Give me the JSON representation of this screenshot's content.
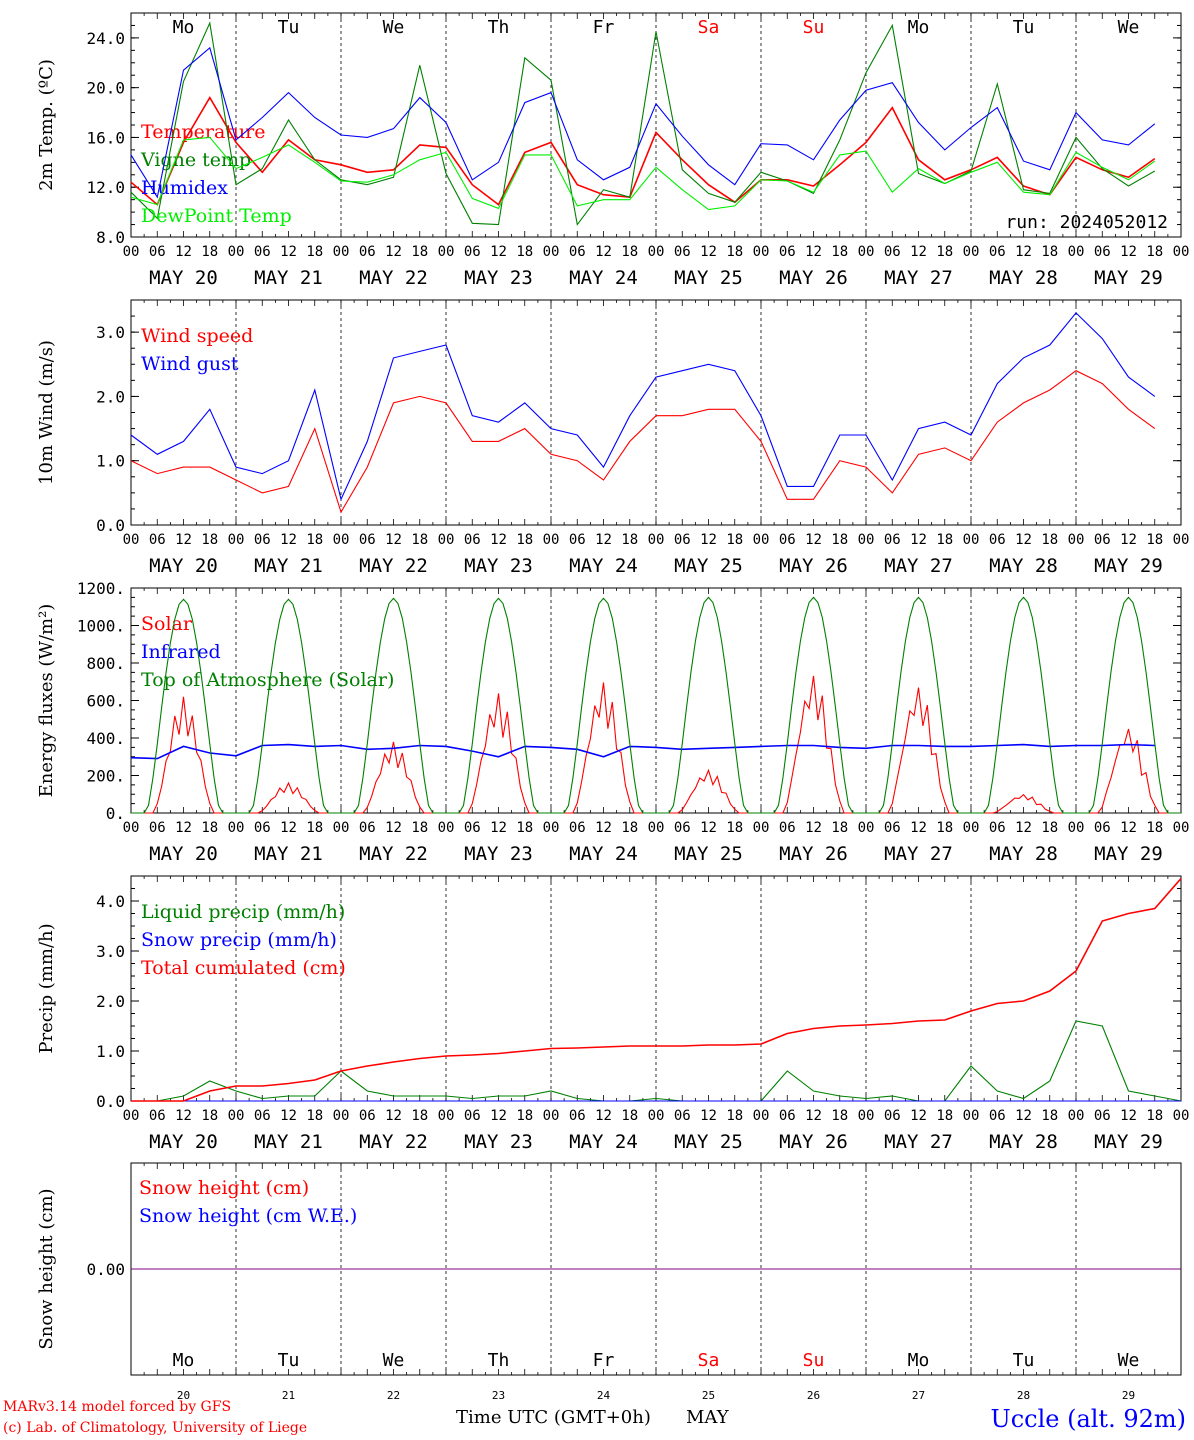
{
  "colors": {
    "red": "#ff0000",
    "green": "#008000",
    "blue": "#0000ff",
    "light_green": "#00ee00",
    "purple": "#800080"
  },
  "time_axis": {
    "hour_labels": [
      "00",
      "06",
      "12",
      "18"
    ],
    "end_label": "00",
    "date_labels": [
      "MAY 20",
      "MAY 21",
      "MAY 22",
      "MAY 23",
      "MAY 24",
      "MAY 25",
      "MAY 26",
      "MAY 27",
      "MAY 28",
      "MAY 29"
    ],
    "weekdays": [
      "Mo",
      "Tu",
      "We",
      "Th",
      "Fr",
      "Sa",
      "Su",
      "Mo",
      "Tu",
      "We"
    ],
    "weekday_colors": [
      "#000000",
      "#000000",
      "#000000",
      "#000000",
      "#000000",
      "#ff0000",
      "#ff0000",
      "#000000",
      "#000000",
      "#000000"
    ],
    "day_numbers": [
      "20",
      "21",
      "22",
      "23",
      "24",
      "25",
      "26",
      "27",
      "28",
      "29"
    ],
    "xlabel": "Time UTC (GMT+0h)",
    "month": "MAY"
  },
  "footer": {
    "credit_line1": "MARv3.14 model forced by GFS",
    "credit_line2": "(c) Lab. of Climatology, University of Liege",
    "location": "Uccle (alt. 92m)"
  },
  "chart_data": [
    {
      "type": "line",
      "ylabel": "2m Temp. (ºC)",
      "ylim": [
        8,
        26
      ],
      "yticks": [
        "8.0",
        "12.0",
        "16.0",
        "20.0",
        "24.0"
      ],
      "run_label": "run: 2024052012",
      "x_hours": [
        0,
        6,
        12,
        18,
        24,
        30,
        36,
        42,
        48,
        54,
        60,
        66,
        72,
        78,
        84,
        90,
        96,
        102,
        108,
        114,
        120,
        126,
        132,
        138,
        144,
        150,
        156,
        162,
        168,
        174,
        180,
        186,
        192,
        198,
        204,
        210,
        216,
        222,
        228,
        234
      ],
      "series": [
        {
          "name": "Temperature",
          "color": "#ff0000",
          "values": [
            12.4,
            10.6,
            15.6,
            19.2,
            15.6,
            13.2,
            15.8,
            14.2,
            13.8,
            13.2,
            13.4,
            15.4,
            15.2,
            12.2,
            10.6,
            14.8,
            15.6,
            12.2,
            11.4,
            11.2,
            16.4,
            14.2,
            12.2,
            10.8,
            12.6,
            12.6,
            12.1,
            13.8,
            15.6,
            18.4,
            14.2,
            12.6,
            13.4,
            14.4,
            12.1,
            11.4,
            14.4,
            13.4,
            12.8,
            14.3
          ]
        },
        {
          "name": "Vigne temp",
          "color": "#008000",
          "values": [
            11.6,
            9.5,
            20.5,
            25.2,
            12.2,
            13.5,
            17.4,
            14.2,
            12.6,
            12.2,
            12.8,
            21.8,
            13.1,
            9.1,
            9.0,
            22.4,
            20.6,
            9.0,
            11.8,
            11.2,
            24.5,
            13.4,
            11.5,
            10.8,
            13.2,
            12.5,
            11.5,
            15.8,
            21.2,
            25.0,
            13.1,
            12.3,
            13.3,
            20.3,
            11.8,
            11.5,
            16.0,
            13.5,
            12.1,
            13.3
          ]
        },
        {
          "name": "Humidex",
          "color": "#0000ff",
          "values": [
            14.6,
            11.2,
            21.4,
            23.2,
            15.8,
            17.6,
            19.6,
            17.6,
            16.2,
            16.0,
            16.7,
            19.2,
            17.2,
            12.6,
            14.0,
            18.8,
            19.6,
            14.2,
            12.6,
            13.6,
            18.7,
            16.1,
            13.8,
            12.2,
            15.5,
            15.4,
            14.2,
            17.4,
            19.8,
            20.4,
            17.2,
            15.0,
            16.8,
            18.4,
            14.1,
            13.4,
            18.0,
            15.8,
            15.4,
            17.1
          ]
        },
        {
          "name": "DewPoint Temp",
          "color": "#00ee00",
          "values": [
            11.2,
            10.6,
            15.8,
            16.0,
            13.5,
            14.4,
            15.4,
            14.0,
            12.5,
            12.4,
            13.0,
            14.2,
            14.8,
            11.1,
            10.3,
            14.6,
            14.6,
            10.5,
            11.0,
            11.0,
            13.6,
            11.8,
            10.2,
            10.5,
            12.6,
            12.5,
            11.6,
            14.6,
            14.9,
            11.6,
            13.5,
            12.3,
            13.2,
            14.0,
            11.6,
            11.4,
            14.8,
            13.6,
            12.6,
            14.1
          ]
        }
      ]
    },
    {
      "type": "line",
      "ylabel": "10m Wind (m/s)",
      "ylim": [
        0,
        3.5
      ],
      "yticks": [
        "0.0",
        "1.0",
        "2.0",
        "3.0"
      ],
      "x_hours": [
        0,
        6,
        12,
        18,
        24,
        30,
        36,
        42,
        48,
        54,
        60,
        66,
        72,
        78,
        84,
        90,
        96,
        102,
        108,
        114,
        120,
        126,
        132,
        138,
        144,
        150,
        156,
        162,
        168,
        174,
        180,
        186,
        192,
        198,
        204,
        210,
        216,
        222,
        228,
        234
      ],
      "series": [
        {
          "name": "Wind speed",
          "color": "#ff0000",
          "values": [
            1.0,
            0.8,
            0.9,
            0.9,
            0.7,
            0.5,
            0.6,
            1.5,
            0.2,
            0.9,
            1.9,
            2.0,
            1.9,
            1.3,
            1.3,
            1.5,
            1.1,
            1.0,
            0.7,
            1.3,
            1.7,
            1.7,
            1.8,
            1.8,
            1.3,
            0.4,
            0.4,
            1.0,
            0.9,
            0.5,
            1.1,
            1.2,
            1.0,
            1.6,
            1.9,
            2.1,
            2.4,
            2.2,
            1.8,
            1.5
          ]
        },
        {
          "name": "Wind gust",
          "color": "#0000ff",
          "values": [
            1.4,
            1.1,
            1.3,
            1.8,
            0.9,
            0.8,
            1.0,
            2.1,
            0.4,
            1.3,
            2.6,
            2.7,
            2.8,
            1.7,
            1.6,
            1.9,
            1.5,
            1.4,
            0.9,
            1.7,
            2.3,
            2.4,
            2.5,
            2.4,
            1.7,
            0.6,
            0.6,
            1.4,
            1.4,
            0.7,
            1.5,
            1.6,
            1.4,
            2.2,
            2.6,
            2.8,
            3.3,
            2.9,
            2.3,
            2.0
          ]
        }
      ]
    },
    {
      "type": "line",
      "ylabel": "Energy fluxes (W/m²)",
      "ylim": [
        0,
        1200
      ],
      "yticks": [
        "0.",
        "200.",
        "400.",
        "600.",
        "800.",
        "1000.",
        "1200."
      ],
      "series": [
        {
          "name": "Solar",
          "color": "#ff0000",
          "daily_peaks": [
            620,
            160,
            380,
            640,
            700,
            230,
            740,
            680,
            100,
            460
          ]
        },
        {
          "name": "Infrared",
          "color": "#0000ff",
          "values": [
            295,
            290,
            355,
            320,
            305,
            360,
            365,
            355,
            360,
            340,
            345,
            360,
            355,
            330,
            300,
            355,
            350,
            340,
            300,
            355,
            350,
            340,
            345,
            350,
            355,
            360,
            360,
            350,
            345,
            360,
            360,
            355,
            355,
            360,
            365,
            355,
            360,
            360,
            365,
            360
          ]
        },
        {
          "name": "Top of Atmosphere (Solar)",
          "color": "#008000",
          "daily_peaks": [
            1140,
            1140,
            1145,
            1145,
            1145,
            1150,
            1150,
            1150,
            1150,
            1150
          ]
        }
      ]
    },
    {
      "type": "line",
      "ylabel": "Precip (mm/h)",
      "ylim": [
        0,
        4.5
      ],
      "yticks": [
        "0.0",
        "1.0",
        "2.0",
        "3.0",
        "4.0"
      ],
      "x_hours": [
        0,
        6,
        12,
        18,
        24,
        30,
        36,
        42,
        48,
        54,
        60,
        66,
        72,
        78,
        84,
        90,
        96,
        102,
        108,
        114,
        120,
        126,
        132,
        138,
        144,
        150,
        156,
        162,
        168,
        174,
        180,
        186,
        192,
        198,
        204,
        210,
        216,
        222,
        228,
        234,
        240
      ],
      "series": [
        {
          "name": "Liquid precip (mm/h)",
          "color": "#008000",
          "values": [
            0,
            0,
            0.1,
            0.4,
            0.2,
            0.05,
            0.1,
            0.1,
            0.6,
            0.2,
            0.1,
            0.1,
            0.1,
            0.05,
            0.1,
            0.1,
            0.2,
            0.05,
            0,
            0,
            0.05,
            0,
            0,
            0,
            0,
            0.6,
            0.2,
            0.1,
            0.05,
            0.1,
            0,
            0,
            0.7,
            0.2,
            0.05,
            0.4,
            1.6,
            1.5,
            0.2,
            0.1,
            0
          ]
        },
        {
          "name": "Snow precip (mm/h)",
          "color": "#0000ff",
          "values": [
            0,
            0,
            0,
            0,
            0,
            0,
            0,
            0,
            0,
            0,
            0,
            0,
            0,
            0,
            0,
            0,
            0,
            0,
            0,
            0,
            0,
            0,
            0,
            0,
            0,
            0,
            0,
            0,
            0,
            0,
            0,
            0,
            0,
            0,
            0,
            0,
            0,
            0,
            0,
            0,
            0
          ]
        },
        {
          "name": "Total cumulated (cm)",
          "color": "#ff0000",
          "values": [
            0,
            0,
            0,
            0.2,
            0.3,
            0.3,
            0.35,
            0.42,
            0.6,
            0.7,
            0.78,
            0.85,
            0.9,
            0.92,
            0.95,
            1.0,
            1.05,
            1.06,
            1.08,
            1.1,
            1.1,
            1.1,
            1.12,
            1.12,
            1.14,
            1.35,
            1.45,
            1.5,
            1.52,
            1.55,
            1.6,
            1.62,
            1.8,
            1.95,
            2.0,
            2.2,
            2.6,
            3.6,
            3.75,
            3.85,
            4.45
          ]
        }
      ]
    },
    {
      "type": "line",
      "ylabel": "Snow height (cm)",
      "ylim": [
        -1,
        1
      ],
      "yticks": [
        "0.00"
      ],
      "series": [
        {
          "name": "Snow height (cm)",
          "color": "#ff0000",
          "values": [
            0,
            0
          ]
        },
        {
          "name": "Snow height (cm W.E.)",
          "color": "#0000ff",
          "values": [
            0,
            0
          ]
        }
      ]
    }
  ]
}
